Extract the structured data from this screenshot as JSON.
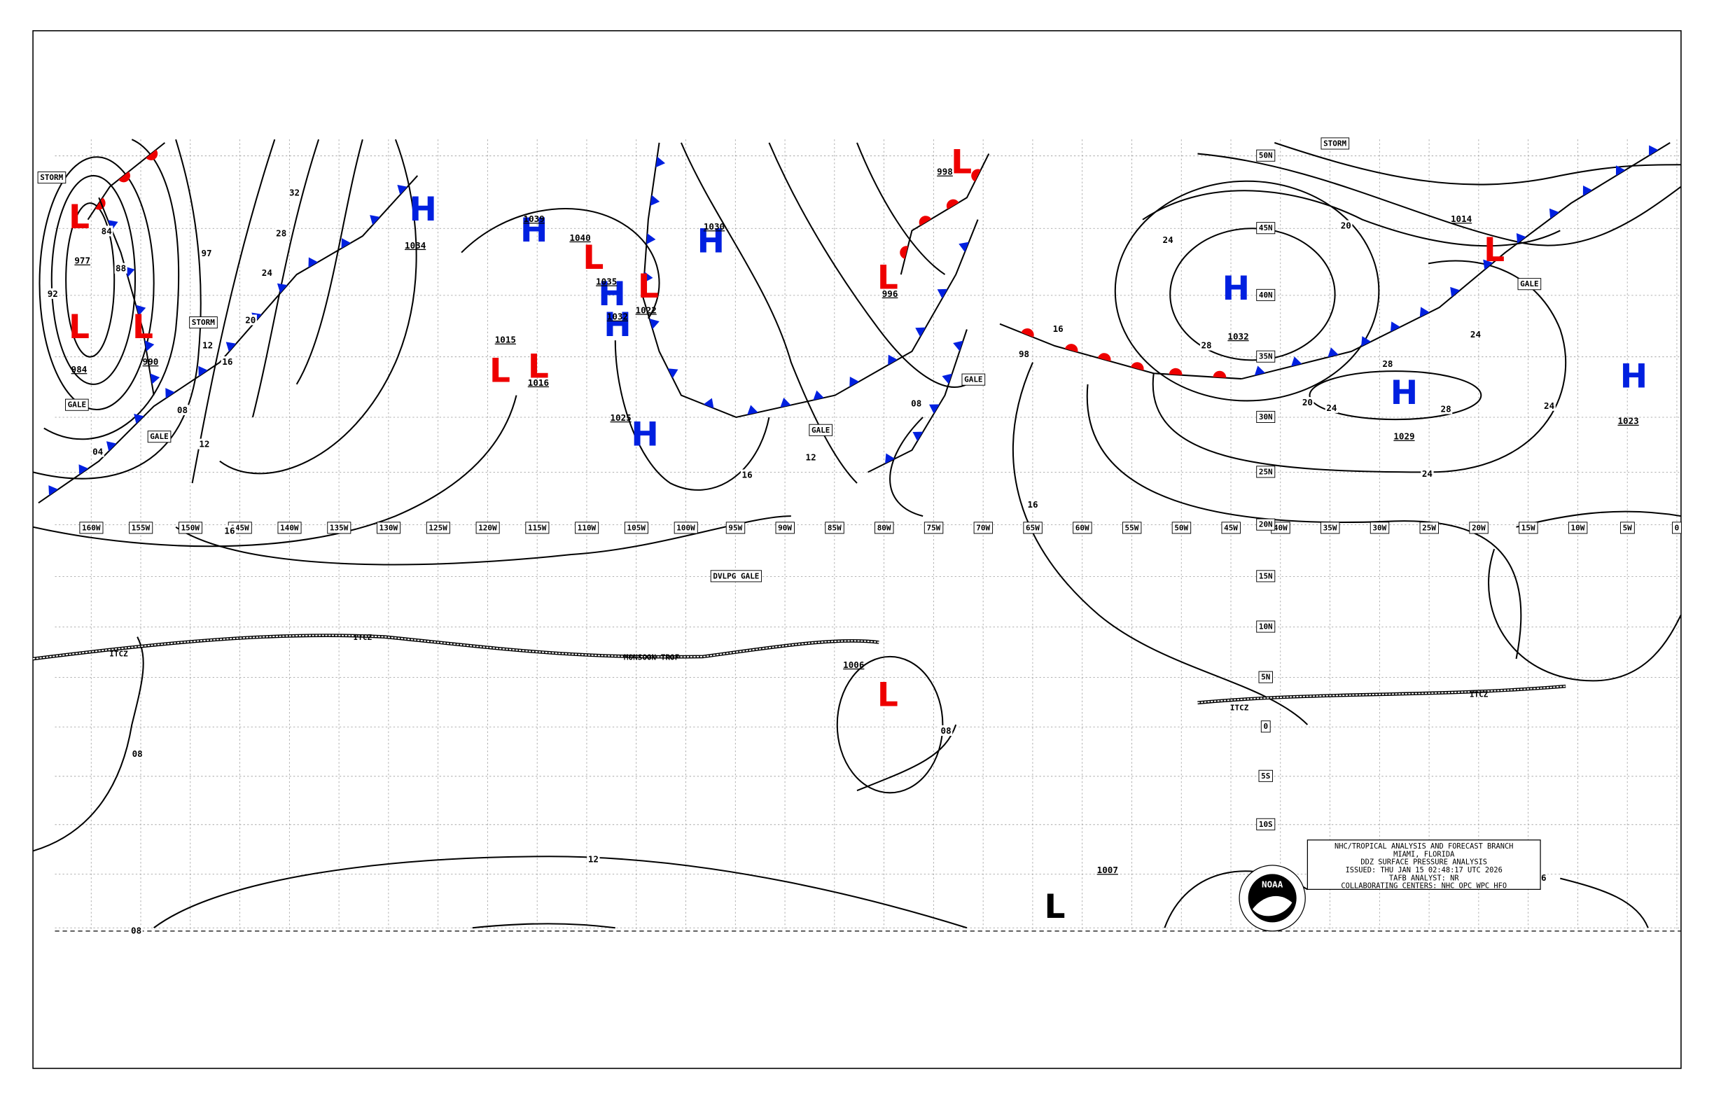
{
  "title_block": {
    "lines": [
      "NHC/TROPICAL ANALYSIS AND FORECAST BRANCH",
      "MIAMI, FLORIDA",
      "DDZ SURFACE PRESSURE ANALYSIS",
      "ISSUED: THU JAN 15 02:48:17 UTC 2026",
      "TAFB ANALYST: NR",
      "COLLABORATING CENTERS: NHC OPC WPC HFO"
    ],
    "logo": "NOAA"
  },
  "longitude_labels": [
    "160W",
    "155W",
    "150W",
    "145W",
    "140W",
    "135W",
    "130W",
    "125W",
    "120W",
    "115W",
    "110W",
    "105W",
    "100W",
    "95W",
    "90W",
    "85W",
    "80W",
    "75W",
    "70W",
    "65W",
    "60W",
    "55W",
    "50W",
    "45W",
    "40W",
    "35W",
    "30W",
    "25W",
    "20W",
    "15W",
    "10W",
    "5W",
    "0"
  ],
  "latitude_labels": [
    "50N",
    "45N",
    "40N",
    "35N",
    "30N",
    "25N",
    "20N",
    "15N",
    "10N",
    "5N",
    "0",
    "5S",
    "10S"
  ],
  "pressure_centers": [
    {
      "symbol": "L",
      "value": "977"
    },
    {
      "symbol": "L",
      "value": "984"
    },
    {
      "symbol": "L",
      "value": "990"
    },
    {
      "symbol": "H",
      "value": "1034"
    },
    {
      "symbol": "H",
      "value": "1039"
    },
    {
      "symbol": "L",
      "value": "1040"
    },
    {
      "symbol": "H",
      "value": "1035"
    },
    {
      "symbol": "H",
      "value": "1032"
    },
    {
      "symbol": "L",
      "value": "1022"
    },
    {
      "symbol": "H",
      "value": "1030"
    },
    {
      "symbol": "H",
      "value": "1025"
    },
    {
      "symbol": "L",
      "value": "1015"
    },
    {
      "symbol": "L",
      "value": "1016"
    },
    {
      "symbol": "L",
      "value": "996"
    },
    {
      "symbol": "L",
      "value": "998"
    },
    {
      "symbol": "H",
      "value": "1032"
    },
    {
      "symbol": "H",
      "value": "1029"
    },
    {
      "symbol": "L",
      "value": "1014"
    },
    {
      "symbol": "H",
      "value": "1023"
    },
    {
      "symbol": "L",
      "value": "1006"
    },
    {
      "symbol": "L",
      "value": "1007"
    }
  ],
  "warning_labels": [
    "STORM",
    "STORM",
    "GALE",
    "GALE",
    "GALE",
    "GALE",
    "GALE",
    "STORM",
    "DVLPG GALE"
  ],
  "feature_labels": [
    "ITCZ",
    "ITCZ",
    "MONSOON TROF",
    "ITCZ",
    "ITCZ"
  ],
  "isobar_labels": [
    "92",
    "84",
    "88",
    "97",
    "32",
    "28",
    "24",
    "20",
    "16",
    "12",
    "08",
    "04",
    "24",
    "16",
    "20",
    "12",
    "16",
    "24",
    "28",
    "20",
    "24",
    "28",
    "24",
    "28",
    "24",
    "16",
    "98",
    "08",
    "12",
    "16",
    "08",
    "12",
    "08",
    "08",
    "6"
  ]
}
